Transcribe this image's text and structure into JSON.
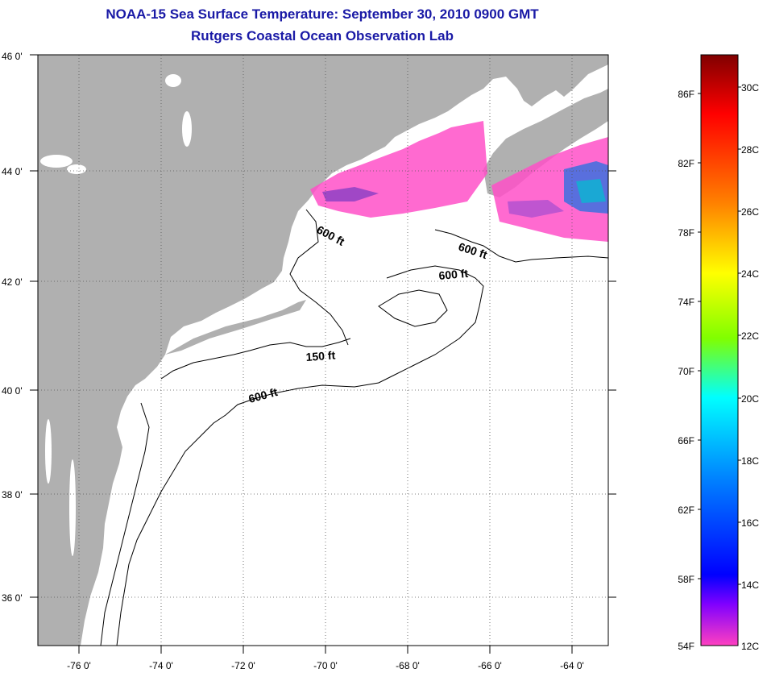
{
  "header": {
    "title": "NOAA-15 Sea Surface Temperature:  September 30, 2010 0900 GMT",
    "subtitle": "Rutgers Coastal Ocean Observation Lab"
  },
  "map": {
    "lon_ticks": [
      "-76 0'",
      "-74 0'",
      "-72 0'",
      "-70 0'",
      "-68 0'",
      "-66 0'",
      "-64 0'"
    ],
    "lat_ticks": [
      "46 0'",
      "44 0'",
      "42 0'",
      "40 0'",
      "38 0'",
      "36 0'"
    ],
    "lon_range": [
      -77,
      -62.5
    ],
    "lat_range": [
      35,
      46
    ],
    "land_color": "#b0b0b0",
    "ocean_color": "#ffffff",
    "contour_labels": [
      "600 ft",
      "600 ft",
      "600 ft",
      "150 ft",
      "600 ft"
    ]
  },
  "colorbar": {
    "f_labels": [
      "86F",
      "82F",
      "78F",
      "74F",
      "70F",
      "66F",
      "62F",
      "58F",
      "54F"
    ],
    "c_labels": [
      "30C",
      "28C",
      "26C",
      "24C",
      "22C",
      "20C",
      "18C",
      "16C",
      "14C",
      "12C"
    ],
    "colors": [
      "#800000",
      "#ff0000",
      "#ff8000",
      "#ffff00",
      "#80ff00",
      "#00ffff",
      "#0080ff",
      "#0000ff",
      "#8000ff",
      "#ff40c0"
    ]
  }
}
